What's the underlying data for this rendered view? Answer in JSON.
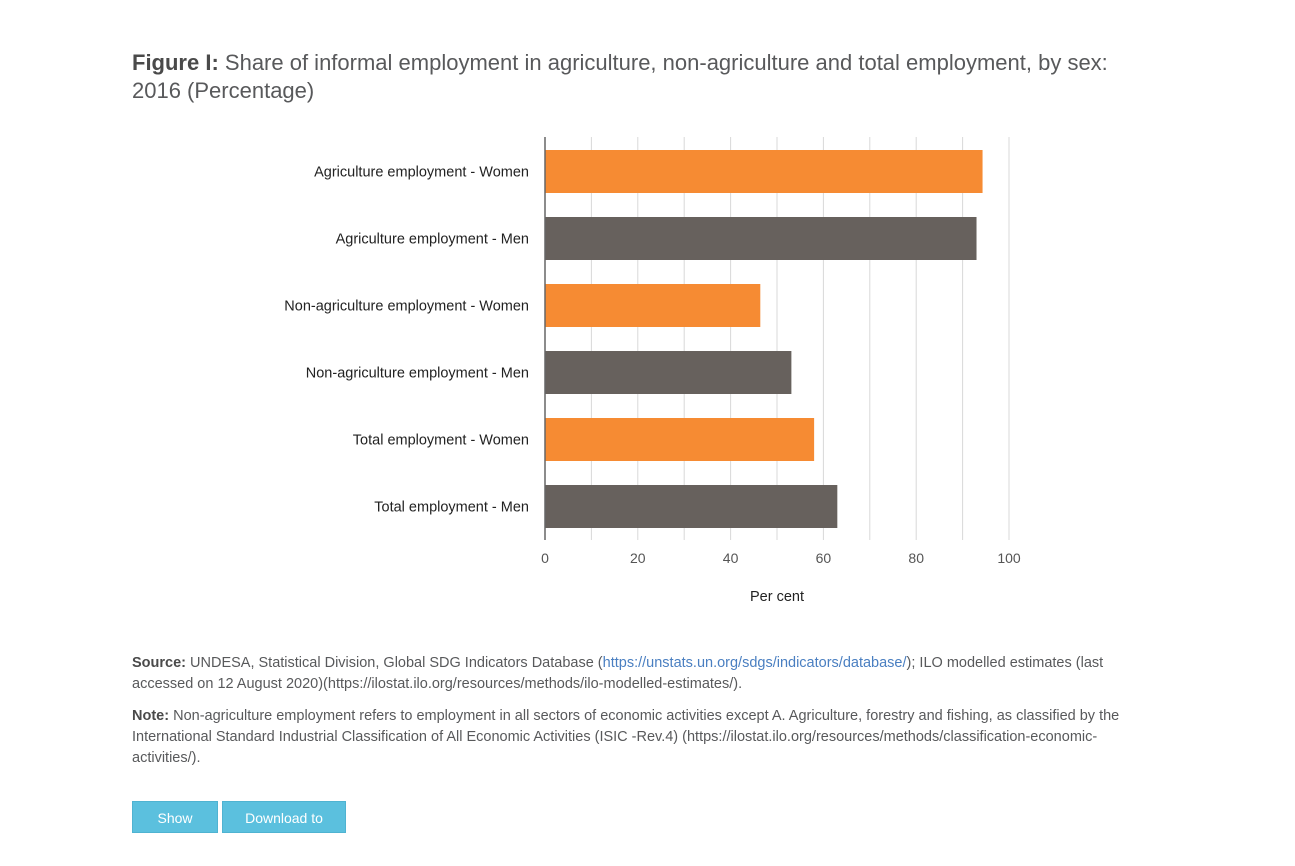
{
  "title": {
    "lead": "Figure I:",
    "text": "Share of informal employment in agriculture, non-agriculture and total employment, by sex: 2016 (Percentage)"
  },
  "colors": {
    "women": "#f68b33",
    "men": "#67615d",
    "grid": "#d8d8d8",
    "axis": "#666666",
    "button": "#5bc0de"
  },
  "chart_data": {
    "type": "bar",
    "orientation": "horizontal",
    "categories": [
      "Agriculture employment - Women",
      "Agriculture employment - Men",
      "Non-agriculture employment - Women",
      "Non-agriculture employment - Men",
      "Total employment - Women",
      "Total employment - Men"
    ],
    "values": [
      94.3,
      93.0,
      46.4,
      53.1,
      58.0,
      63.0
    ],
    "bar_colors": [
      "#f68b33",
      "#67615d",
      "#f68b33",
      "#67615d",
      "#f68b33",
      "#67615d"
    ],
    "xlabel": "Per cent",
    "xlim": [
      0,
      100
    ],
    "xticks": [
      0,
      20,
      40,
      60,
      80,
      100
    ],
    "grid": true
  },
  "source": {
    "label": "Source:",
    "text_before": " UNDESA, Statistical Division, Global SDG Indicators Database (",
    "link": "https://unstats.un.org/sdgs/indicators/database/",
    "text_after": "); ILO modelled estimates (last accessed on 12 August 2020)(https://ilostat.ilo.org/resources/methods/ilo-modelled-estimates/)."
  },
  "note": {
    "label": "Note:",
    "text": " Non-agriculture employment refers to employment in all sectors of economic activities except A. Agriculture, forestry and fishing, as classified by the International Standard Industrial Classification of All Economic Activities (ISIC -Rev.4) (https://ilostat.ilo.org/resources/methods/classification-economic-activities/)."
  },
  "buttons": {
    "show_data": "Show Data",
    "download_csv": "Download to CSV"
  }
}
